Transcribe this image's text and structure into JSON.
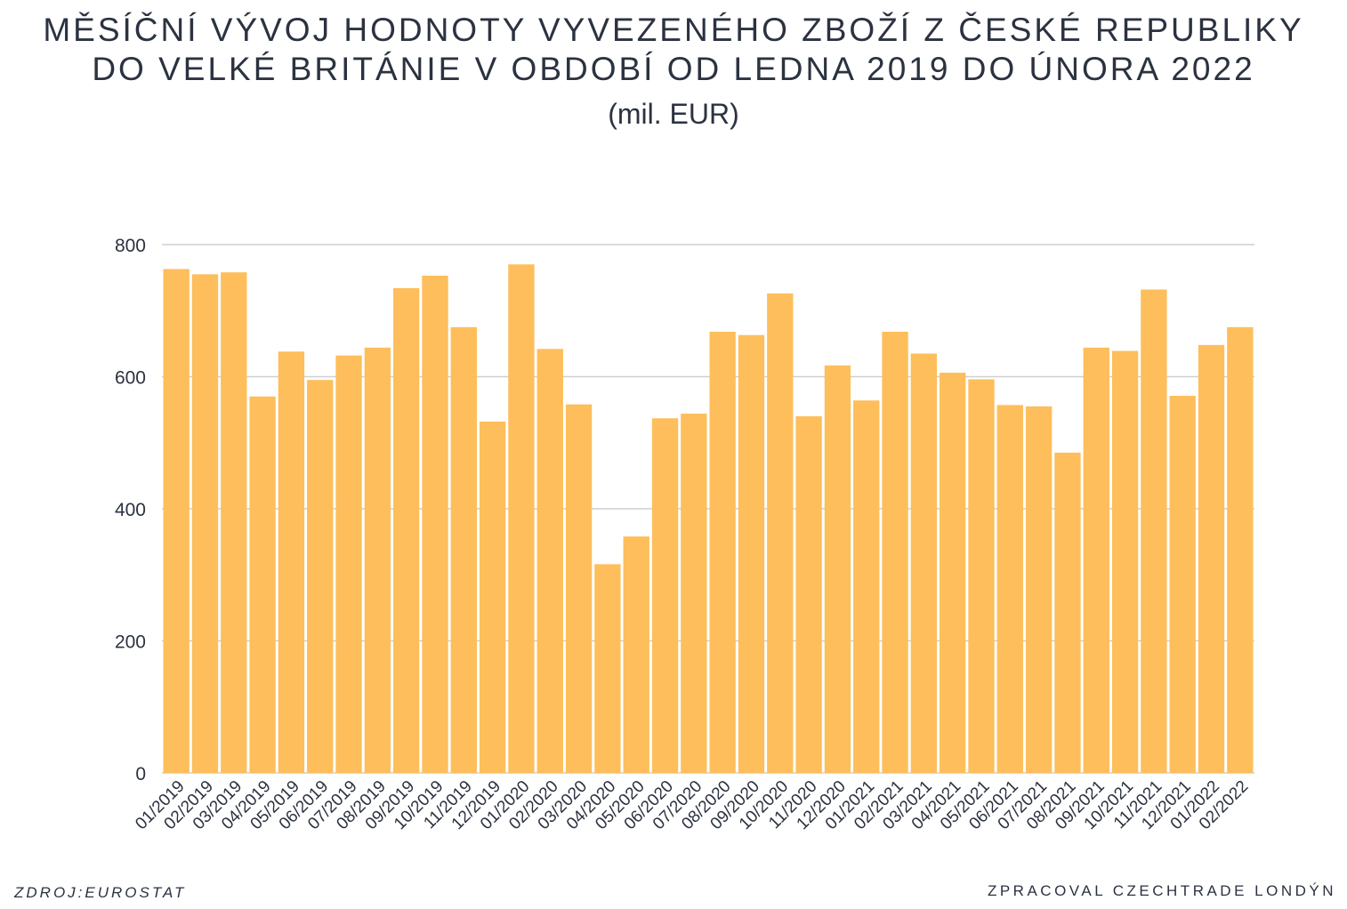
{
  "header": {
    "title_line1": "MĚSÍČNÍ VÝVOJ HODNOTY VYVEZENÉHO ZBOŽÍ Z ČESKÉ REPUBLIKY",
    "title_line2": "DO VELKÉ BRITÁNIE V OBDOBÍ OD LEDNA 2019 DO ÚNORA 2022",
    "subtitle": "(mil. EUR)"
  },
  "footer": {
    "source": "ZDROJ:EUROSTAT",
    "credit": "ZPRACOVAL CZECHTRADE LONDÝN"
  },
  "colors": {
    "bar": "#fdbe5b",
    "grid": "#cfcfcf",
    "text": "#2b3240"
  },
  "chart_data": {
    "type": "bar",
    "title": "MĚSÍČNÍ VÝVOJ HODNOTY VYVEZENÉHO ZBOŽÍ Z ČESKÉ REPUBLIKY DO VELKÉ BRITÁNIE V OBDOBÍ OD LEDNA 2019 DO ÚNORA 2022",
    "subtitle": "(mil. EUR)",
    "xlabel": "",
    "ylabel": "",
    "ylim": [
      0,
      800
    ],
    "yticks": [
      0,
      200,
      400,
      600,
      800
    ],
    "grid": true,
    "legend": "none",
    "categories": [
      "01/2019",
      "02/2019",
      "03/2019",
      "04/2019",
      "05/2019",
      "06/2019",
      "07/2019",
      "08/2019",
      "09/2019",
      "10/2019",
      "11/2019",
      "12/2019",
      "01/2020",
      "02/2020",
      "03/2020",
      "04/2020",
      "05/2020",
      "06/2020",
      "07/2020",
      "08/2020",
      "09/2020",
      "10/2020",
      "11/2020",
      "12/2020",
      "01/2021",
      "02/2021",
      "03/2021",
      "04/2021",
      "05/2021",
      "06/2021",
      "07/2021",
      "08/2021",
      "09/2021",
      "10/2021",
      "11/2021",
      "12/2021",
      "01/2022",
      "02/2022"
    ],
    "values": [
      763,
      755,
      758,
      570,
      638,
      595,
      632,
      644,
      734,
      753,
      675,
      532,
      770,
      642,
      558,
      316,
      358,
      537,
      544,
      668,
      663,
      726,
      540,
      617,
      564,
      668,
      635,
      606,
      596,
      557,
      555,
      485,
      644,
      639,
      732,
      571,
      648,
      675
    ]
  }
}
